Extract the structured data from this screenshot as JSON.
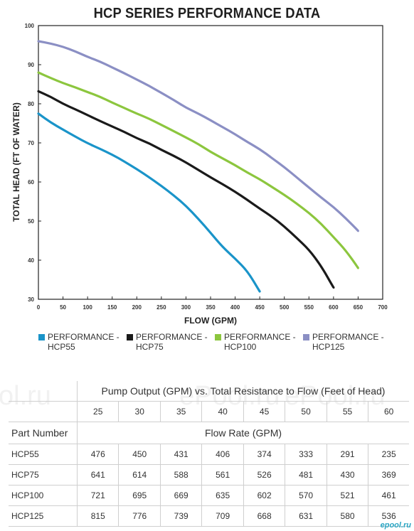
{
  "chart_data": {
    "type": "line",
    "title": "HCP SERIES PERFORMANCE DATA",
    "xlabel": "FLOW (GPM)",
    "ylabel": "TOTAL HEAD (FT OF WATER)",
    "xlim": [
      0,
      700
    ],
    "ylim": [
      30,
      100
    ],
    "xticks": [
      0,
      50,
      100,
      150,
      200,
      250,
      300,
      350,
      400,
      450,
      500,
      550,
      600,
      650,
      700
    ],
    "yticks": [
      30,
      40,
      50,
      60,
      70,
      80,
      90,
      100
    ],
    "grid": false,
    "legend_position": "bottom",
    "series": [
      {
        "name": "PERFORMANCE - HCP55",
        "color": "#1a94c9",
        "points": [
          [
            0,
            77.5
          ],
          [
            25,
            75.2
          ],
          [
            50,
            73.4
          ],
          [
            75,
            71.6
          ],
          [
            100,
            69.9
          ],
          [
            125,
            68.5
          ],
          [
            150,
            67.0
          ],
          [
            175,
            65.2
          ],
          [
            200,
            63.3
          ],
          [
            225,
            61.2
          ],
          [
            250,
            59.0
          ],
          [
            275,
            56.6
          ],
          [
            300,
            53.9
          ],
          [
            325,
            50.6
          ],
          [
            350,
            47.0
          ],
          [
            375,
            43.3
          ],
          [
            400,
            40.4
          ],
          [
            425,
            37.2
          ],
          [
            450,
            32.0
          ]
        ]
      },
      {
        "name": "PERFORMANCE - HCP75",
        "color": "#1a1a1a",
        "points": [
          [
            0,
            83.2
          ],
          [
            25,
            81.8
          ],
          [
            50,
            80.0
          ],
          [
            75,
            78.6
          ],
          [
            100,
            77.1
          ],
          [
            125,
            75.6
          ],
          [
            150,
            74.2
          ],
          [
            175,
            72.8
          ],
          [
            200,
            71.2
          ],
          [
            225,
            69.9
          ],
          [
            250,
            68.2
          ],
          [
            275,
            66.7
          ],
          [
            300,
            65.0
          ],
          [
            325,
            63.1
          ],
          [
            350,
            61.2
          ],
          [
            375,
            59.4
          ],
          [
            400,
            57.5
          ],
          [
            425,
            55.4
          ],
          [
            450,
            53.2
          ],
          [
            475,
            51.1
          ],
          [
            500,
            48.6
          ],
          [
            525,
            45.7
          ],
          [
            550,
            42.7
          ],
          [
            575,
            38.5
          ],
          [
            600,
            33.0
          ]
        ]
      },
      {
        "name": "PERFORMANCE - HCP100",
        "color": "#8cc63e",
        "points": [
          [
            0,
            88.0
          ],
          [
            25,
            86.6
          ],
          [
            50,
            85.3
          ],
          [
            75,
            84.2
          ],
          [
            100,
            83.0
          ],
          [
            125,
            81.8
          ],
          [
            150,
            80.3
          ],
          [
            175,
            78.9
          ],
          [
            200,
            77.5
          ],
          [
            225,
            76.2
          ],
          [
            250,
            74.6
          ],
          [
            275,
            73.0
          ],
          [
            300,
            71.4
          ],
          [
            325,
            69.7
          ],
          [
            350,
            67.7
          ],
          [
            375,
            66.0
          ],
          [
            400,
            64.3
          ],
          [
            425,
            62.4
          ],
          [
            450,
            60.7
          ],
          [
            475,
            58.7
          ],
          [
            500,
            56.7
          ],
          [
            525,
            54.5
          ],
          [
            550,
            52.1
          ],
          [
            575,
            49.3
          ],
          [
            600,
            45.9
          ],
          [
            625,
            42.5
          ],
          [
            650,
            38.0
          ]
        ]
      },
      {
        "name": "PERFORMANCE - HCP125",
        "color": "#8b8fc4",
        "points": [
          [
            0,
            96.0
          ],
          [
            25,
            95.4
          ],
          [
            50,
            94.6
          ],
          [
            75,
            93.4
          ],
          [
            100,
            92.0
          ],
          [
            125,
            90.8
          ],
          [
            150,
            89.3
          ],
          [
            175,
            87.8
          ],
          [
            200,
            86.2
          ],
          [
            225,
            84.6
          ],
          [
            250,
            82.8
          ],
          [
            275,
            81.0
          ],
          [
            300,
            79.0
          ],
          [
            325,
            77.5
          ],
          [
            350,
            75.8
          ],
          [
            375,
            74.0
          ],
          [
            400,
            72.2
          ],
          [
            425,
            70.2
          ],
          [
            450,
            68.4
          ],
          [
            475,
            66.1
          ],
          [
            500,
            63.8
          ],
          [
            525,
            61.2
          ],
          [
            550,
            58.6
          ],
          [
            575,
            56.0
          ],
          [
            600,
            53.6
          ],
          [
            625,
            50.7
          ],
          [
            650,
            47.5
          ]
        ]
      }
    ]
  },
  "legend": [
    {
      "label": "PERFORMANCE -\nHCP55",
      "color": "#1a94c9"
    },
    {
      "label": "PERFORMANCE -\nHCP75",
      "color": "#1a1a1a"
    },
    {
      "label": "PERFORMANCE -\nHCP100",
      "color": "#8cc63e"
    },
    {
      "label": "PERFORMANCE -\nHCP125",
      "color": "#8b8fc4"
    }
  ],
  "table": {
    "caption": "Pump Output (GPM) vs. Total Resistance to Flow (Feet of Head)",
    "head_values": [
      "25",
      "30",
      "35",
      "40",
      "45",
      "50",
      "55",
      "60"
    ],
    "part_number_label": "Part Number",
    "flow_rate_label": "Flow Rate (GPM)",
    "rows": [
      {
        "part": "HCP55",
        "values": [
          "476",
          "450",
          "431",
          "406",
          "374",
          "333",
          "291",
          "235"
        ]
      },
      {
        "part": "HCP75",
        "values": [
          "641",
          "614",
          "588",
          "561",
          "526",
          "481",
          "430",
          "369"
        ]
      },
      {
        "part": "HCP100",
        "values": [
          "721",
          "695",
          "669",
          "635",
          "602",
          "570",
          "521",
          "461"
        ]
      },
      {
        "part": "HCP125",
        "values": [
          "815",
          "776",
          "739",
          "709",
          "668",
          "631",
          "580",
          "536"
        ]
      }
    ]
  },
  "watermarks": {
    "left": "ol.ru",
    "mid1": "ePool.ru",
    "mid2": "ePool.ru",
    "bottom_right": "epool.ru"
  }
}
